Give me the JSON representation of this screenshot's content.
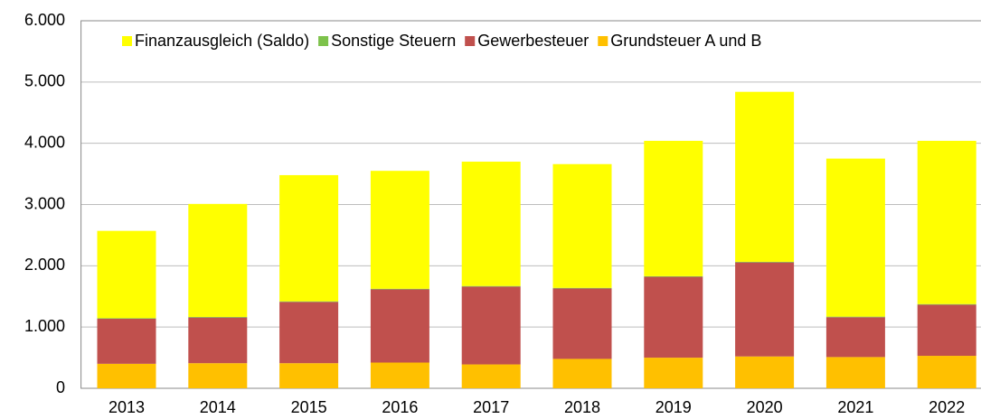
{
  "chart_data": {
    "type": "stacked_bar",
    "categories": [
      "2013",
      "2014",
      "2015",
      "2016",
      "2017",
      "2018",
      "2019",
      "2020",
      "2021",
      "2022"
    ],
    "series": [
      {
        "name": "Finanzausgleich (Saldo)",
        "color": "#ffff00",
        "values": [
          1425,
          1845,
          2060,
          1925,
          2030,
          2020,
          2210,
          2775,
          2580,
          2665
        ]
      },
      {
        "name": "Sonstige Steuern",
        "color": "#7dc24b",
        "values": [
          10,
          10,
          10,
          10,
          10,
          10,
          10,
          10,
          10,
          10
        ]
      },
      {
        "name": "Gewerbesteuer",
        "color": "#c0504d",
        "values": [
          735,
          745,
          1000,
          1195,
          1270,
          1150,
          1320,
          1535,
          650,
          835
        ]
      },
      {
        "name": "Grundsteuer A und B",
        "color": "#ffc000",
        "values": [
          400,
          410,
          410,
          420,
          390,
          480,
          500,
          520,
          510,
          530
        ]
      }
    ],
    "ylim": [
      0,
      6000
    ],
    "yticks": [
      0,
      {
        "value": 1000,
        "label": "1.000"
      },
      {
        "value": 2000,
        "label": "2.000"
      },
      {
        "value": 3000,
        "label": "3.000"
      },
      {
        "value": 4000,
        "label": "4.000"
      },
      {
        "value": 5000,
        "label": "5.000"
      },
      {
        "value": 6000,
        "label": "6.000"
      }
    ],
    "grid": true
  }
}
